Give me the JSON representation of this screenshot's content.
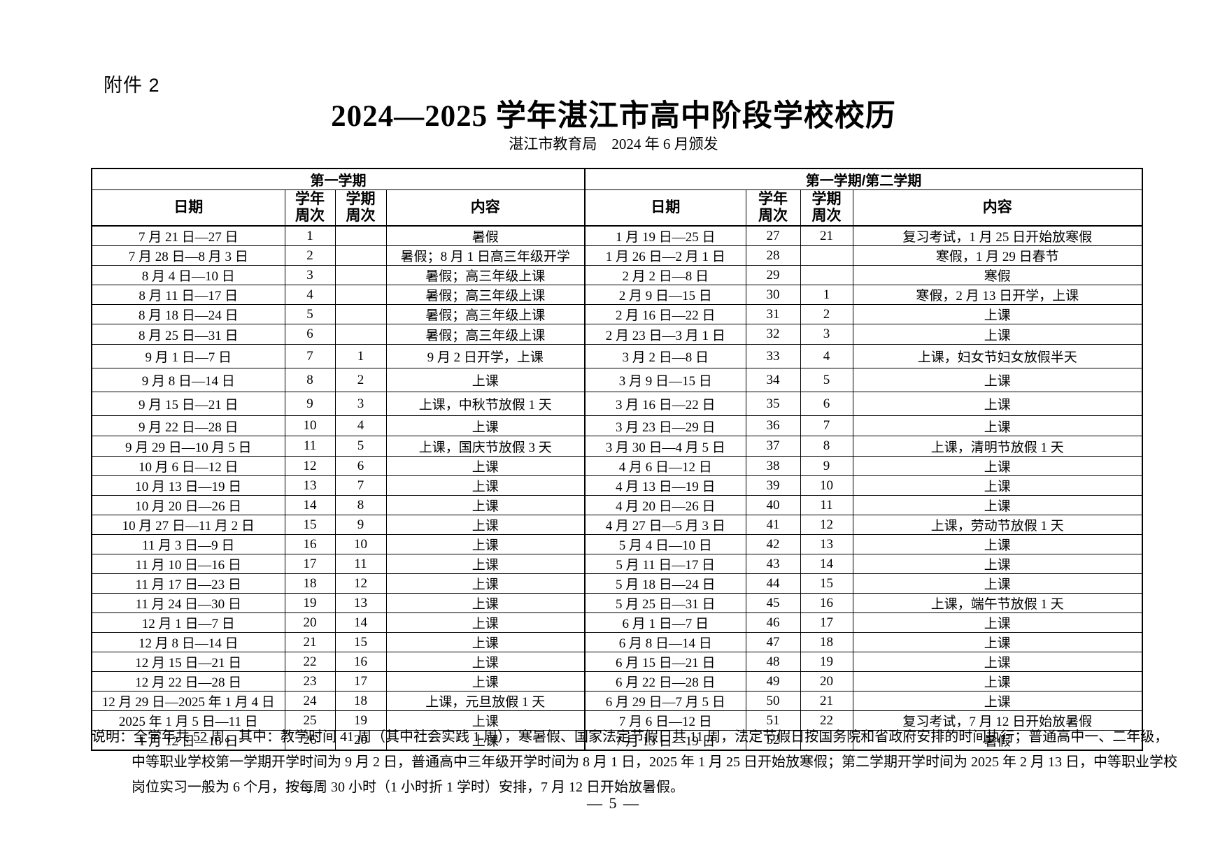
{
  "page": {
    "attachment": "附件 2",
    "title": "2024—2025 学年湛江市高中阶段学校校历",
    "subtitle": "湛江市教育局　2024 年 6 月颁发",
    "page_number": "— 5 —"
  },
  "table": {
    "left_title": "第一学期",
    "right_title": "第一学期/第二学期",
    "headers": {
      "date": "日期",
      "year_week": "学年\n周次",
      "term_week": "学期\n周次",
      "content": "内容"
    },
    "left_rows": [
      {
        "date": "7 月 21 日—27 日",
        "year_week": "1",
        "term_week": "",
        "content": "暑假"
      },
      {
        "date": "7 月 28 日—8 月 3 日",
        "year_week": "2",
        "term_week": "",
        "content": "暑假；8 月 1 日高三年级开学"
      },
      {
        "date": "8 月 4 日—10 日",
        "year_week": "3",
        "term_week": "",
        "content": "暑假；高三年级上课"
      },
      {
        "date": "8 月 11 日—17 日",
        "year_week": "4",
        "term_week": "",
        "content": "暑假；高三年级上课"
      },
      {
        "date": "8 月 18 日—24 日",
        "year_week": "5",
        "term_week": "",
        "content": "暑假；高三年级上课"
      },
      {
        "date": "8 月 25 日—31 日",
        "year_week": "6",
        "term_week": "",
        "content": "暑假；高三年级上课"
      },
      {
        "date": "9 月 1 日—7 日",
        "year_week": "7",
        "term_week": "1",
        "content": "9 月 2 日开学，上课"
      },
      {
        "date": "9 月 8 日—14 日",
        "year_week": "8",
        "term_week": "2",
        "content": "上课"
      },
      {
        "date": "9 月 15 日—21 日",
        "year_week": "9",
        "term_week": "3",
        "content": "上课，中秋节放假 1 天"
      },
      {
        "date": "9 月 22 日—28 日",
        "year_week": "10",
        "term_week": "4",
        "content": "上课"
      },
      {
        "date": "9 月 29 日—10 月 5 日",
        "year_week": "11",
        "term_week": "5",
        "content": "上课，国庆节放假 3 天"
      },
      {
        "date": "10 月 6 日—12 日",
        "year_week": "12",
        "term_week": "6",
        "content": "上课"
      },
      {
        "date": "10 月 13 日—19 日",
        "year_week": "13",
        "term_week": "7",
        "content": "上课"
      },
      {
        "date": "10 月 20 日—26 日",
        "year_week": "14",
        "term_week": "8",
        "content": "上课"
      },
      {
        "date": "10 月 27 日—11 月 2 日",
        "year_week": "15",
        "term_week": "9",
        "content": "上课"
      },
      {
        "date": "11 月 3 日—9 日",
        "year_week": "16",
        "term_week": "10",
        "content": "上课"
      },
      {
        "date": "11 月 10 日—16 日",
        "year_week": "17",
        "term_week": "11",
        "content": "上课"
      },
      {
        "date": "11 月 17 日—23 日",
        "year_week": "18",
        "term_week": "12",
        "content": "上课"
      },
      {
        "date": "11 月 24 日—30 日",
        "year_week": "19",
        "term_week": "13",
        "content": "上课"
      },
      {
        "date": "12 月 1 日—7 日",
        "year_week": "20",
        "term_week": "14",
        "content": "上课"
      },
      {
        "date": "12 月 8 日—14 日",
        "year_week": "21",
        "term_week": "15",
        "content": "上课"
      },
      {
        "date": "12 月 15 日—21 日",
        "year_week": "22",
        "term_week": "16",
        "content": "上课"
      },
      {
        "date": "12 月 22 日—28 日",
        "year_week": "23",
        "term_week": "17",
        "content": "上课"
      },
      {
        "date": "12 月 29 日—2025 年 1 月 4 日",
        "year_week": "24",
        "term_week": "18",
        "content": "上课，元旦放假 1 天"
      },
      {
        "date": "2025 年 1 月 5 日—11 日",
        "year_week": "25",
        "term_week": "19",
        "content": "上课"
      },
      {
        "date": "1 月 12 日—18 日",
        "year_week": "26",
        "term_week": "20",
        "content": "上课"
      }
    ],
    "right_rows": [
      {
        "date": "1 月 19 日—25 日",
        "year_week": "27",
        "term_week": "21",
        "content": "复习考试，1 月 25 日开始放寒假"
      },
      {
        "date": "1 月 26 日—2 月 1 日",
        "year_week": "28",
        "term_week": "",
        "content": "寒假，1 月 29 日春节"
      },
      {
        "date": "2 月 2 日—8 日",
        "year_week": "29",
        "term_week": "",
        "content": "寒假"
      },
      {
        "date": "2 月 9 日—15 日",
        "year_week": "30",
        "term_week": "1",
        "content": "寒假，2 月 13 日开学，上课"
      },
      {
        "date": "2 月 16 日—22 日",
        "year_week": "31",
        "term_week": "2",
        "content": "上课"
      },
      {
        "date": "2 月 23 日—3 月 1 日",
        "year_week": "32",
        "term_week": "3",
        "content": "上课"
      },
      {
        "date": "3 月 2 日—8 日",
        "year_week": "33",
        "term_week": "4",
        "content": "上课，妇女节妇女放假半天"
      },
      {
        "date": "3 月 9 日—15 日",
        "year_week": "34",
        "term_week": "5",
        "content": "上课"
      },
      {
        "date": "3 月 16 日—22 日",
        "year_week": "35",
        "term_week": "6",
        "content": "上课"
      },
      {
        "date": "3 月 23 日—29 日",
        "year_week": "36",
        "term_week": "7",
        "content": "上课"
      },
      {
        "date": "3 月 30 日—4 月 5 日",
        "year_week": "37",
        "term_week": "8",
        "content": "上课，清明节放假 1 天"
      },
      {
        "date": "4 月 6 日—12 日",
        "year_week": "38",
        "term_week": "9",
        "content": "上课"
      },
      {
        "date": "4 月 13 日—19 日",
        "year_week": "39",
        "term_week": "10",
        "content": "上课"
      },
      {
        "date": "4 月 20 日—26 日",
        "year_week": "40",
        "term_week": "11",
        "content": "上课"
      },
      {
        "date": "4 月 27 日—5 月 3 日",
        "year_week": "41",
        "term_week": "12",
        "content": "上课，劳动节放假 1 天"
      },
      {
        "date": "5 月 4 日—10 日",
        "year_week": "42",
        "term_week": "13",
        "content": "上课"
      },
      {
        "date": "5 月 11 日—17 日",
        "year_week": "43",
        "term_week": "14",
        "content": "上课"
      },
      {
        "date": "5 月 18 日—24 日",
        "year_week": "44",
        "term_week": "15",
        "content": "上课"
      },
      {
        "date": "5 月 25 日—31 日",
        "year_week": "45",
        "term_week": "16",
        "content": "上课，端午节放假 1 天"
      },
      {
        "date": "6 月 1 日—7 日",
        "year_week": "46",
        "term_week": "17",
        "content": "上课"
      },
      {
        "date": "6 月 8 日—14 日",
        "year_week": "47",
        "term_week": "18",
        "content": "上课"
      },
      {
        "date": "6 月 15 日—21 日",
        "year_week": "48",
        "term_week": "19",
        "content": "上课"
      },
      {
        "date": "6 月 22 日—28 日",
        "year_week": "49",
        "term_week": "20",
        "content": "上课"
      },
      {
        "date": "6 月 29 日—7 月 5 日",
        "year_week": "50",
        "term_week": "21",
        "content": "上课"
      },
      {
        "date": "7 月 6 日—12 日",
        "year_week": "51",
        "term_week": "22",
        "content": "复习考试，7 月 12 日开始放暑假"
      },
      {
        "date": "7 月 13 日—19 日",
        "year_week": "52",
        "term_week": "",
        "content": "暑假"
      }
    ]
  },
  "note": {
    "label": "说明：",
    "text": "全学年共 52 周。其中：教学时间 41 周（其中社会实践 1 周），寒暑假、国家法定节假日共 11 周，法定节假日按国务院和省政府安排的时间执行；普通高中一、二年级，中等职业学校第一学期开学时间为 9 月 2 日，普通高中三年级开学时间为 8 月 1 日，2025 年 1 月 25 日开始放寒假；第二学期开学时间为 2025 年 2 月 13 日，中等职业学校岗位实习一般为 6 个月，按每周 30 小时（1 小时折 1 学时）安排，7 月 12 日开始放暑假。"
  }
}
